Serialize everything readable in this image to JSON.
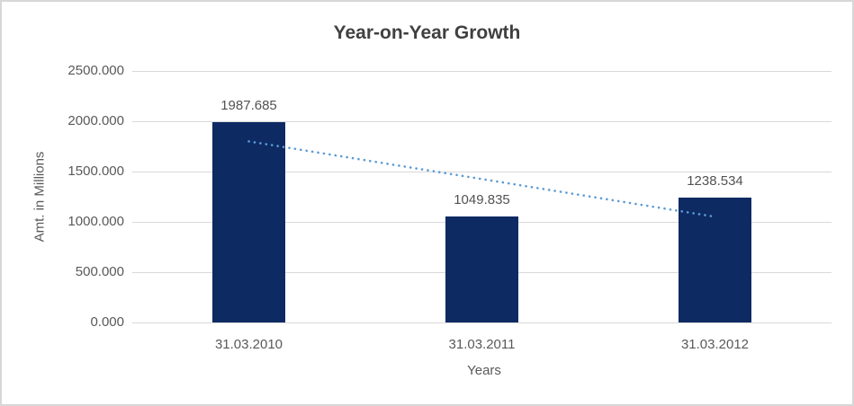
{
  "chart_data": {
    "type": "bar",
    "title": "Year-on-Year Growth",
    "xlabel": "Years",
    "ylabel": "Amt. in Millions",
    "categories": [
      "31.03.2010",
      "31.03.2011",
      "31.03.2012"
    ],
    "values": [
      1987.685,
      1049.835,
      1238.534
    ],
    "data_labels": [
      "1987.685",
      "1049.835",
      "1238.534"
    ],
    "ylim": [
      0,
      2500
    ],
    "ytick_step": 500,
    "yticks": [
      {
        "value": 2500,
        "label": "2500.000"
      },
      {
        "value": 2000,
        "label": "2000.000"
      },
      {
        "value": 1500,
        "label": "1500.000"
      },
      {
        "value": 1000,
        "label": "1000.000"
      },
      {
        "value": 500,
        "label": "500.000"
      },
      {
        "value": 0,
        "label": "0.000"
      }
    ],
    "grid": true,
    "legend": "none",
    "trendline": {
      "type": "linear",
      "style": "dotted",
      "start_value": 1800,
      "end_value": 1051
    },
    "colors": {
      "bar": "#0d2a63",
      "trendline": "#5b9bd5",
      "gridline": "#d9d9d9",
      "axis_text": "#595959",
      "title_text": "#404040",
      "border": "#d7d7d7"
    }
  }
}
